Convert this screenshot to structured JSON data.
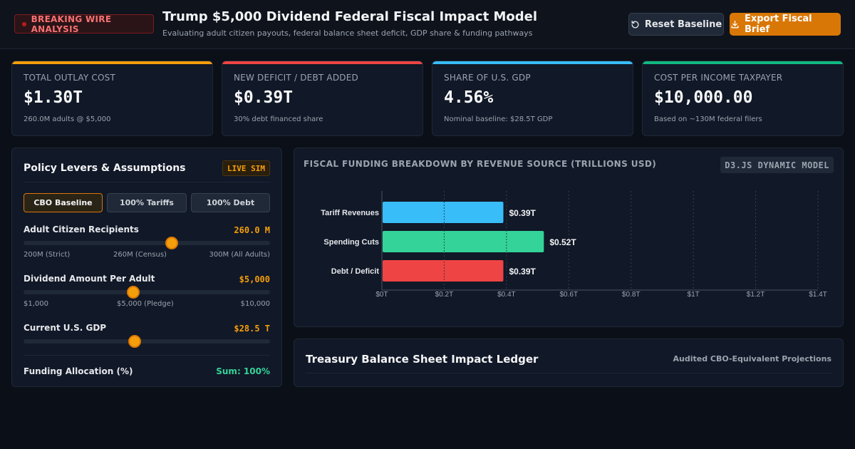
{
  "header": {
    "badge": "BREAKING WIRE ANALYSIS",
    "title": "Trump $5,000 Dividend Federal Fiscal Impact Model",
    "subtitle": "Evaluating adult citizen payouts, federal balance sheet deficit, GDP share & funding pathways",
    "reset_label": "Reset Baseline",
    "export_label": "Export Fiscal Brief"
  },
  "kpis": [
    {
      "label": "TOTAL OUTLAY COST",
      "value": "$1.30T",
      "sub": "260.0M adults @ $5,000",
      "accent": "#f59e0b"
    },
    {
      "label": "NEW DEFICIT / DEBT ADDED",
      "value": "$0.39T",
      "sub": "30% debt financed share",
      "accent": "#ef4444"
    },
    {
      "label": "SHARE OF U.S. GDP",
      "value": "4.56%",
      "sub": "Nominal baseline: $28.5T GDP",
      "accent": "#38bdf8"
    },
    {
      "label": "COST PER INCOME TAXPAYER",
      "value": "$10,000.00",
      "sub": "Based on ~130M federal filers",
      "accent": "#10b981"
    }
  ],
  "levers": {
    "title": "Policy Levers & Assumptions",
    "tag": "LIVE SIM",
    "presets": [
      "CBO Baseline",
      "100% Tariffs",
      "100% Debt"
    ],
    "active_preset": "CBO Baseline",
    "sliders": [
      {
        "label": "Adult Citizen Recipients",
        "value": "260.0 M",
        "level": 0.6,
        "ticks": [
          "200M (Strict)",
          "260M (Census)",
          "300M (All Adults)"
        ]
      },
      {
        "label": "Dividend Amount Per Adult",
        "value": "$5,000",
        "level": 0.444,
        "ticks": [
          "$1,000",
          "$5,000 (Pledge)",
          "$10,000"
        ]
      },
      {
        "label": "Current U.S. GDP",
        "value": "$28.5 T",
        "level": 0.45,
        "ticks": []
      }
    ],
    "funding_label": "Funding Allocation (%)",
    "funding_sum": "Sum: 100%"
  },
  "chart_panel": {
    "title": "FISCAL FUNDING BREAKDOWN BY REVENUE SOURCE (TRILLIONS USD)",
    "tag": "D3.JS DYNAMIC MODEL"
  },
  "chart_data": {
    "type": "bar",
    "orientation": "horizontal",
    "categories": [
      "Tariff Revenues",
      "Spending Cuts",
      "Debt / Deficit"
    ],
    "values": [
      0.39,
      0.52,
      0.39
    ],
    "data_labels": [
      "$0.39T",
      "$0.52T",
      "$0.39T"
    ],
    "colors": [
      "#38bdf8",
      "#34d399",
      "#ef4444"
    ],
    "xlim": [
      0,
      1.4
    ],
    "x_ticks": [
      0,
      0.2,
      0.4,
      0.6,
      0.8,
      1.0,
      1.2,
      1.4
    ],
    "x_tick_labels": [
      "$0T",
      "$0.2T",
      "$0.4T",
      "$0.6T",
      "$0.8T",
      "$1T",
      "$1.2T",
      "$1.4T"
    ],
    "grid": true
  },
  "ledger": {
    "title": "Treasury Balance Sheet Impact Ledger",
    "note": "Audited CBO-Equivalent Projections"
  }
}
